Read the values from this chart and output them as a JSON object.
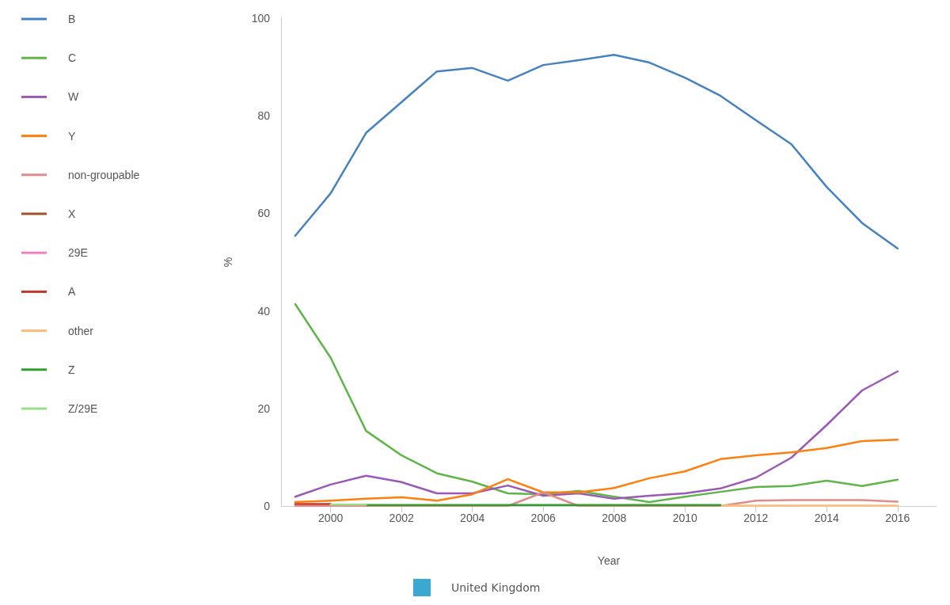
{
  "chart_data": {
    "type": "line",
    "xlabel": "Year",
    "ylabel": "%",
    "x": [
      1999,
      2000,
      2001,
      2002,
      2003,
      2004,
      2005,
      2006,
      2007,
      2008,
      2009,
      2010,
      2011,
      2012,
      2013,
      2014,
      2015,
      2016
    ],
    "xlim": [
      1998.6,
      2017.1
    ],
    "xticks": [
      2000,
      2002,
      2004,
      2006,
      2008,
      2010,
      2012,
      2014,
      2016
    ],
    "ylim": [
      0,
      100
    ],
    "yticks": [
      0,
      20,
      40,
      60,
      80,
      100
    ],
    "grid": false,
    "legend": "left",
    "marker": "none",
    "line_style": "solid",
    "annotations": [
      "United Kingdom"
    ],
    "series": [
      {
        "name": "B",
        "color": "#4682c0",
        "values": [
          55.4,
          64.1,
          76.5,
          82.8,
          89.1,
          89.8,
          87.2,
          90.4,
          91.4,
          92.5,
          90.9,
          87.8,
          84.1,
          79.1,
          74.2,
          65.4,
          58,
          52.8
        ]
      },
      {
        "name": "C",
        "color": "#5fb548",
        "values": [
          41.4,
          30.4,
          15.4,
          10.4,
          6.7,
          5,
          2.6,
          2.4,
          3.1,
          1.9,
          0.8,
          1.9,
          2.9,
          3.9,
          4.1,
          5.2,
          4.1,
          5.4
        ]
      },
      {
        "name": "W",
        "color": "#9b59b6",
        "values": [
          1.9,
          4.4,
          6.2,
          4.9,
          2.6,
          2.6,
          4.2,
          2.1,
          2.6,
          1.5,
          2.1,
          2.6,
          3.6,
          5.8,
          9.9,
          16.6,
          23.7,
          27.6
        ]
      },
      {
        "name": "Y",
        "color": "#ff7f0e",
        "values": [
          0.8,
          1.1,
          1.5,
          1.8,
          1.1,
          2.4,
          5.5,
          2.8,
          2.8,
          3.7,
          5.7,
          7.1,
          9.6,
          10.4,
          11,
          11.9,
          13.3,
          13.6
        ]
      },
      {
        "name": "non-groupable",
        "color": "#e08a8a",
        "values": [
          0,
          0,
          0,
          0,
          0,
          0,
          0,
          2.8,
          0,
          0,
          0,
          0,
          0,
          1.1,
          1.2,
          1.2,
          1.2,
          0.9
        ]
      },
      {
        "name": "X",
        "color": "#a0522d",
        "values": [
          null,
          null,
          null,
          null,
          null,
          null,
          null,
          null,
          null,
          null,
          null,
          null,
          null,
          null,
          null,
          null,
          null,
          null
        ]
      },
      {
        "name": "29E",
        "color": "#f77fbf",
        "values": [
          null,
          null,
          null,
          null,
          null,
          null,
          null,
          null,
          null,
          null,
          null,
          null,
          null,
          null,
          null,
          null,
          null,
          null
        ]
      },
      {
        "name": "A",
        "color": "#c0392b",
        "values": [
          0.4,
          0.4,
          null,
          null,
          null,
          null,
          null,
          null,
          null,
          null,
          null,
          null,
          null,
          null,
          null,
          null,
          null,
          null
        ]
      },
      {
        "name": "other",
        "color": "#ffbb78",
        "values": [
          null,
          null,
          null,
          null,
          null,
          null,
          null,
          null,
          null,
          null,
          null,
          null,
          0.1,
          0.1,
          0.1,
          0.1,
          0.1,
          0.1
        ]
      },
      {
        "name": "Z",
        "color": "#2ca02c",
        "values": [
          null,
          null,
          0.2,
          0.2,
          0.2,
          0.2,
          0.2,
          0.2,
          0.2,
          0.2,
          0.2,
          0.2,
          0.2,
          null,
          null,
          null,
          null,
          null
        ]
      },
      {
        "name": "Z/29E",
        "color": "#98df8a",
        "values": [
          null,
          0.3,
          0.3,
          null,
          null,
          null,
          null,
          null,
          null,
          null,
          null,
          null,
          null,
          null,
          null,
          null,
          null,
          null
        ]
      }
    ]
  }
}
